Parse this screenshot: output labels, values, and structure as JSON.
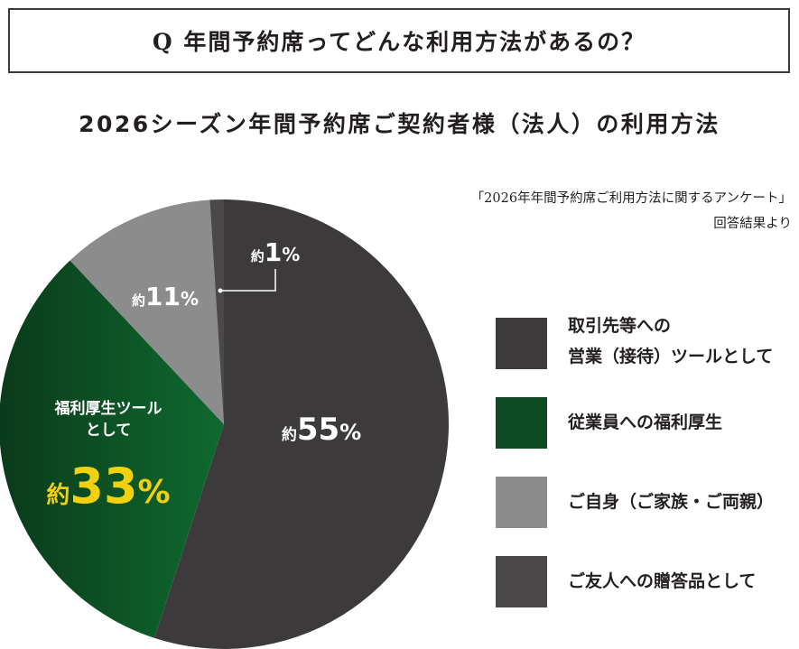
{
  "question": "Q 年間予約席ってどんな利用方法があるの？",
  "survey_title": "2026シーズン年間予約席ご契約者様（法人）の利用方法",
  "source_line1": "「2026年年間予約席ご利用方法に関するアンケート」",
  "source_line2": "回答結果より",
  "chart_data": {
    "type": "pie",
    "title": "2026シーズン年間予約席ご契約者様（法人）の利用方法",
    "unit": "%",
    "legend_position": "right",
    "slices": [
      {
        "name": "取引先等への営業（接待）ツールとして",
        "value": 55,
        "label_prefix": "約",
        "label_value": "55",
        "label_unit": "%",
        "color": "#3d3a3b"
      },
      {
        "name": "従業員への福利厚生",
        "value": 33,
        "label_prefix": "約",
        "label_value": "33",
        "label_unit": "%",
        "label_caption_1": "福利厚生ツール",
        "label_caption_2": "として",
        "color": "#0b4a22"
      },
      {
        "name": "ご自身（ご家族・ご両親）",
        "value": 11,
        "label_prefix": "約",
        "label_value": "11",
        "label_unit": "%",
        "color": "#8c8c8c"
      },
      {
        "name": "ご友人への贈答品として",
        "value": 1,
        "label_prefix": "約",
        "label_value": "1",
        "label_unit": "%",
        "color": "#4a4849"
      }
    ]
  },
  "legend": [
    {
      "line1": "取引先等への",
      "line2": "営業（接待）ツールとして",
      "color": "#3d3a3b"
    },
    {
      "line1": "従業員への福利厚生",
      "line2": "",
      "color": "#0b4a22"
    },
    {
      "line1": "ご自身（ご家族・ご両親）",
      "line2": "",
      "color": "#8c8c8c"
    },
    {
      "line1": "ご友人への贈答品として",
      "line2": "",
      "color": "#4a4849"
    }
  ]
}
